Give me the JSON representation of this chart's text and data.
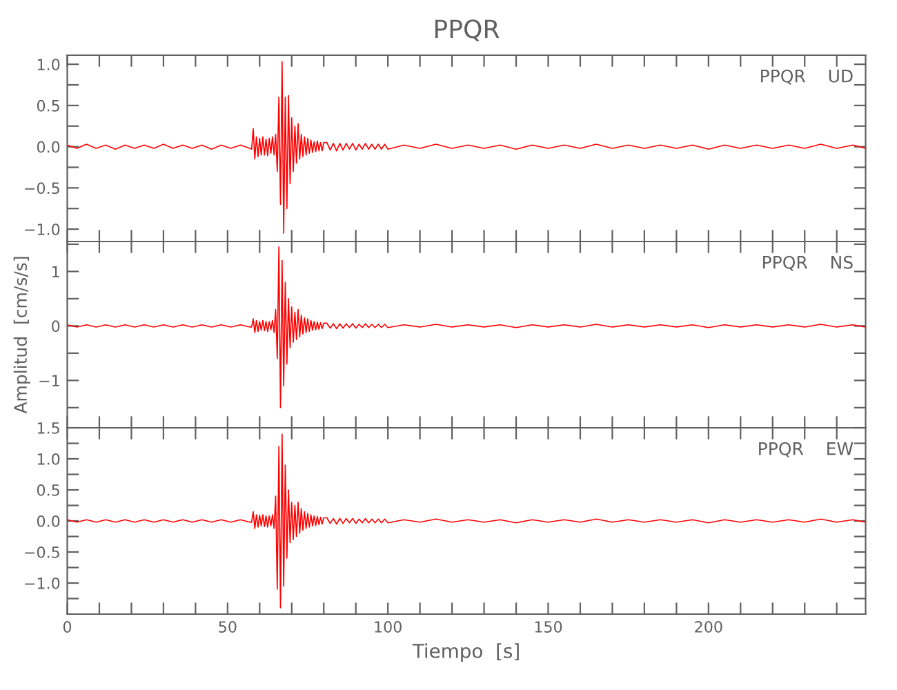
{
  "chart_data": [
    {
      "type": "line",
      "title": "PPQR",
      "annotations": [
        "PPQR    UD"
      ],
      "tick_labels": "y",
      "xlim": [
        0,
        249
      ],
      "xticks": [
        {
          "value": 0,
          "label": null
        },
        {
          "value": 10,
          "label": null
        },
        {
          "value": 20,
          "label": null
        },
        {
          "value": 30,
          "label": null
        },
        {
          "value": 40,
          "label": null
        },
        {
          "value": 50,
          "label": null
        },
        {
          "value": 60,
          "label": null
        },
        {
          "value": 70,
          "label": null
        },
        {
          "value": 80,
          "label": null
        },
        {
          "value": 90,
          "label": null
        },
        {
          "value": 100,
          "label": null
        },
        {
          "value": 110,
          "label": null
        },
        {
          "value": 120,
          "label": null
        },
        {
          "value": 130,
          "label": null
        },
        {
          "value": 140,
          "label": null
        },
        {
          "value": 150,
          "label": null
        },
        {
          "value": 160,
          "label": null
        },
        {
          "value": 170,
          "label": null
        },
        {
          "value": 180,
          "label": null
        },
        {
          "value": 190,
          "label": null
        },
        {
          "value": 200,
          "label": null
        },
        {
          "value": 210,
          "label": null
        },
        {
          "value": 220,
          "label": null
        },
        {
          "value": 230,
          "label": null
        },
        {
          "value": 240,
          "label": null
        }
      ],
      "ylim": [
        -1.15,
        1.11
      ],
      "yticks": [
        {
          "value": -1.0,
          "label": "−1.0"
        },
        {
          "value": -0.75,
          "label": null
        },
        {
          "value": -0.5,
          "label": "−0.5"
        },
        {
          "value": -0.25,
          "label": null
        },
        {
          "value": 0.0,
          "label": "0.0"
        },
        {
          "value": 0.25,
          "label": null
        },
        {
          "value": 0.5,
          "label": "0.5"
        },
        {
          "value": 0.75,
          "label": null
        },
        {
          "value": 1.0,
          "label": "1.0"
        }
      ],
      "x": [
        0,
        3,
        6,
        9,
        12,
        15,
        18,
        21,
        24,
        27,
        30,
        33,
        36,
        39,
        42,
        45,
        48,
        51,
        54,
        57,
        57.5,
        58,
        58.5,
        59,
        59.5,
        60,
        60.5,
        61,
        61.5,
        62,
        62.5,
        63,
        63.5,
        64,
        64.5,
        65,
        65.5,
        66,
        66.5,
        67,
        67.5,
        68,
        68.5,
        69,
        69.5,
        70,
        70.5,
        71,
        71.5,
        72,
        72.5,
        73,
        73.5,
        74,
        74.5,
        75,
        75.5,
        76,
        76.5,
        77,
        77.5,
        78,
        78.5,
        79,
        79.5,
        80,
        81,
        82,
        83,
        84,
        85,
        86,
        87,
        88,
        89,
        90,
        91,
        92,
        93,
        94,
        95,
        96,
        97,
        98,
        99,
        100,
        105,
        110,
        115,
        120,
        125,
        130,
        135,
        140,
        145,
        150,
        155,
        160,
        165,
        170,
        175,
        180,
        185,
        190,
        195,
        200,
        205,
        210,
        215,
        220,
        225,
        230,
        235,
        240,
        245,
        249
      ],
      "series": [
        {
          "color": "#ff0000",
          "values": [
            0.02,
            -0.02,
            0.03,
            -0.02,
            0.02,
            -0.03,
            0.02,
            -0.02,
            0.02,
            -0.02,
            0.03,
            -0.02,
            0.02,
            -0.02,
            0.02,
            -0.03,
            0.02,
            -0.02,
            0.02,
            -0.02,
            -0.03,
            0.22,
            -0.15,
            0.12,
            -0.12,
            0.1,
            -0.1,
            0.12,
            -0.1,
            0.09,
            -0.11,
            0.1,
            -0.08,
            0.12,
            -0.1,
            0.15,
            -0.3,
            0.6,
            -0.7,
            1.03,
            -1.05,
            0.6,
            -0.75,
            0.62,
            -0.45,
            0.35,
            -0.3,
            0.25,
            -0.2,
            0.28,
            -0.15,
            0.15,
            -0.12,
            0.12,
            -0.1,
            0.1,
            -0.08,
            0.08,
            -0.07,
            0.06,
            -0.06,
            0.07,
            -0.05,
            0.05,
            -0.05,
            0.05,
            0.05,
            -0.04,
            0.04,
            -0.05,
            0.04,
            -0.04,
            0.04,
            -0.03,
            0.04,
            -0.04,
            0.03,
            -0.03,
            0.04,
            -0.03,
            0.03,
            -0.03,
            0.03,
            -0.03,
            0.03,
            -0.03,
            0.02,
            -0.02,
            0.03,
            -0.02,
            0.02,
            -0.02,
            0.02,
            -0.03,
            0.02,
            -0.02,
            0.02,
            -0.02,
            0.03,
            -0.02,
            0.02,
            -0.02,
            0.02,
            -0.02,
            0.02,
            -0.03,
            0.02,
            -0.02,
            0.02,
            -0.02,
            0.02,
            -0.02,
            0.03,
            -0.02,
            0.02,
            -0.02
          ]
        }
      ]
    },
    {
      "type": "line",
      "ylabel": "Amplitud  [cm/s/s]",
      "annotations": [
        "PPQR    NS"
      ],
      "tick_labels": "y",
      "xlim": [
        0,
        249
      ],
      "xticks": [
        {
          "value": 0,
          "label": null
        },
        {
          "value": 10,
          "label": null
        },
        {
          "value": 20,
          "label": null
        },
        {
          "value": 30,
          "label": null
        },
        {
          "value": 40,
          "label": null
        },
        {
          "value": 50,
          "label": null
        },
        {
          "value": 60,
          "label": null
        },
        {
          "value": 70,
          "label": null
        },
        {
          "value": 80,
          "label": null
        },
        {
          "value": 90,
          "label": null
        },
        {
          "value": 100,
          "label": null
        },
        {
          "value": 110,
          "label": null
        },
        {
          "value": 120,
          "label": null
        },
        {
          "value": 130,
          "label": null
        },
        {
          "value": 140,
          "label": null
        },
        {
          "value": 150,
          "label": null
        },
        {
          "value": 160,
          "label": null
        },
        {
          "value": 170,
          "label": null
        },
        {
          "value": 180,
          "label": null
        },
        {
          "value": 190,
          "label": null
        },
        {
          "value": 200,
          "label": null
        },
        {
          "value": 210,
          "label": null
        },
        {
          "value": 220,
          "label": null
        },
        {
          "value": 230,
          "label": null
        },
        {
          "value": 240,
          "label": null
        }
      ],
      "ylim": [
        -1.87,
        1.55
      ],
      "yticks": [
        {
          "value": -1.5,
          "label": null
        },
        {
          "value": -1,
          "label": "−1"
        },
        {
          "value": -0.5,
          "label": null
        },
        {
          "value": 0,
          "label": "0"
        },
        {
          "value": 0.5,
          "label": null
        },
        {
          "value": 1,
          "label": "1"
        },
        {
          "value": 1.5,
          "label": null
        }
      ],
      "x": [
        0,
        3,
        6,
        9,
        12,
        15,
        18,
        21,
        24,
        27,
        30,
        33,
        36,
        39,
        42,
        45,
        48,
        51,
        54,
        57,
        57.5,
        58,
        58.5,
        59,
        59.5,
        60,
        60.5,
        61,
        61.5,
        62,
        62.5,
        63,
        63.5,
        64,
        64.5,
        65,
        65.5,
        66,
        66.5,
        67,
        67.5,
        68,
        68.5,
        69,
        69.5,
        70,
        70.5,
        71,
        71.5,
        72,
        72.5,
        73,
        73.5,
        74,
        74.5,
        75,
        75.5,
        76,
        76.5,
        77,
        77.5,
        78,
        78.5,
        79,
        79.5,
        80,
        81,
        82,
        83,
        84,
        85,
        86,
        87,
        88,
        89,
        90,
        91,
        92,
        93,
        94,
        95,
        96,
        97,
        98,
        99,
        100,
        105,
        110,
        115,
        120,
        125,
        130,
        135,
        140,
        145,
        150,
        155,
        160,
        165,
        170,
        175,
        180,
        185,
        190,
        195,
        200,
        205,
        210,
        215,
        220,
        225,
        230,
        235,
        240,
        245,
        249
      ],
      "series": [
        {
          "color": "#ff0000",
          "values": [
            0.02,
            -0.02,
            0.02,
            -0.02,
            0.02,
            -0.02,
            0.02,
            -0.02,
            0.02,
            -0.02,
            0.02,
            -0.02,
            0.02,
            -0.02,
            0.02,
            -0.02,
            0.02,
            -0.02,
            0.02,
            -0.02,
            -0.02,
            0.13,
            -0.12,
            0.1,
            -0.1,
            0.08,
            -0.08,
            0.1,
            -0.09,
            0.08,
            -0.1,
            0.08,
            -0.07,
            0.1,
            -0.12,
            0.3,
            -0.6,
            1.45,
            -1.5,
            1.2,
            -1.1,
            0.8,
            -0.7,
            0.5,
            -0.4,
            0.35,
            -0.3,
            0.25,
            -0.25,
            0.3,
            -0.2,
            0.2,
            -0.15,
            0.15,
            -0.12,
            0.13,
            -0.1,
            0.1,
            -0.08,
            0.08,
            -0.07,
            0.07,
            -0.06,
            0.06,
            -0.05,
            0.05,
            0.05,
            -0.04,
            0.04,
            -0.05,
            0.04,
            -0.04,
            0.04,
            -0.03,
            0.04,
            -0.04,
            0.03,
            -0.03,
            0.04,
            -0.03,
            0.03,
            -0.03,
            0.03,
            -0.03,
            0.03,
            -0.03,
            0.02,
            -0.02,
            0.03,
            -0.02,
            0.02,
            -0.02,
            0.02,
            -0.03,
            0.02,
            -0.02,
            0.02,
            -0.02,
            0.03,
            -0.02,
            0.02,
            -0.02,
            0.02,
            -0.02,
            0.02,
            -0.03,
            0.02,
            -0.02,
            0.02,
            -0.02,
            0.02,
            -0.02,
            0.03,
            -0.02,
            0.02,
            -0.02
          ]
        }
      ]
    },
    {
      "type": "line",
      "xlabel": "Tiempo  [s]",
      "annotations": [
        "PPQR    EW"
      ],
      "xlim": [
        0,
        249
      ],
      "xticks": [
        {
          "value": 0,
          "label": "0"
        },
        {
          "value": 10,
          "label": null
        },
        {
          "value": 20,
          "label": null
        },
        {
          "value": 30,
          "label": null
        },
        {
          "value": 40,
          "label": null
        },
        {
          "value": 50,
          "label": "50"
        },
        {
          "value": 60,
          "label": null
        },
        {
          "value": 70,
          "label": null
        },
        {
          "value": 80,
          "label": null
        },
        {
          "value": 90,
          "label": null
        },
        {
          "value": 100,
          "label": "100"
        },
        {
          "value": 110,
          "label": null
        },
        {
          "value": 120,
          "label": null
        },
        {
          "value": 130,
          "label": null
        },
        {
          "value": 140,
          "label": null
        },
        {
          "value": 150,
          "label": "150"
        },
        {
          "value": 160,
          "label": null
        },
        {
          "value": 170,
          "label": null
        },
        {
          "value": 180,
          "label": null
        },
        {
          "value": 190,
          "label": null
        },
        {
          "value": 200,
          "label": "200"
        },
        {
          "value": 210,
          "label": null
        },
        {
          "value": 220,
          "label": null
        },
        {
          "value": 230,
          "label": null
        },
        {
          "value": 240,
          "label": null
        }
      ],
      "ylim": [
        -1.5,
        1.5
      ],
      "yticks": [
        {
          "value": -1.25,
          "label": null
        },
        {
          "value": -1.0,
          "label": "−1.0"
        },
        {
          "value": -0.75,
          "label": null
        },
        {
          "value": -0.5,
          "label": "−0.5"
        },
        {
          "value": -0.25,
          "label": null
        },
        {
          "value": 0.0,
          "label": "0.0"
        },
        {
          "value": 0.25,
          "label": null
        },
        {
          "value": 0.5,
          "label": "0.5"
        },
        {
          "value": 0.75,
          "label": null
        },
        {
          "value": 1.0,
          "label": "1.0"
        },
        {
          "value": 1.25,
          "label": null
        },
        {
          "value": 1.5,
          "label": "1.5"
        }
      ],
      "x": [
        0,
        3,
        6,
        9,
        12,
        15,
        18,
        21,
        24,
        27,
        30,
        33,
        36,
        39,
        42,
        45,
        48,
        51,
        54,
        57,
        57.5,
        58,
        58.5,
        59,
        59.5,
        60,
        60.5,
        61,
        61.5,
        62,
        62.5,
        63,
        63.5,
        64,
        64.5,
        65,
        65.5,
        66,
        66.5,
        67,
        67.5,
        68,
        68.5,
        69,
        69.5,
        70,
        70.5,
        71,
        71.5,
        72,
        72.5,
        73,
        73.5,
        74,
        74.5,
        75,
        75.5,
        76,
        76.5,
        77,
        77.5,
        78,
        78.5,
        79,
        79.5,
        80,
        81,
        82,
        83,
        84,
        85,
        86,
        87,
        88,
        89,
        90,
        91,
        92,
        93,
        94,
        95,
        96,
        97,
        98,
        99,
        100,
        105,
        110,
        115,
        120,
        125,
        130,
        135,
        140,
        145,
        150,
        155,
        160,
        165,
        170,
        175,
        180,
        185,
        190,
        195,
        200,
        205,
        210,
        215,
        220,
        225,
        230,
        235,
        240,
        245,
        249
      ],
      "series": [
        {
          "color": "#ff0000",
          "values": [
            0.02,
            -0.02,
            0.02,
            -0.02,
            0.02,
            -0.02,
            0.02,
            -0.02,
            0.02,
            -0.02,
            0.02,
            -0.02,
            0.02,
            -0.02,
            0.02,
            -0.02,
            0.02,
            -0.02,
            0.02,
            -0.02,
            -0.02,
            0.15,
            -0.12,
            0.1,
            -0.1,
            0.09,
            -0.08,
            0.1,
            -0.09,
            0.08,
            -0.1,
            0.08,
            -0.08,
            0.1,
            -0.12,
            0.4,
            -1.1,
            1.2,
            -1.4,
            1.4,
            -1.05,
            0.9,
            -0.6,
            0.5,
            -0.35,
            0.3,
            -0.3,
            0.25,
            -0.25,
            0.3,
            -0.2,
            0.2,
            -0.15,
            0.15,
            -0.12,
            0.12,
            -0.1,
            0.1,
            -0.08,
            0.08,
            -0.07,
            0.07,
            -0.06,
            0.06,
            -0.05,
            0.05,
            0.05,
            -0.04,
            0.04,
            -0.05,
            0.04,
            -0.04,
            0.04,
            -0.03,
            0.04,
            -0.04,
            0.03,
            -0.03,
            0.04,
            -0.03,
            0.03,
            -0.03,
            0.03,
            -0.03,
            0.03,
            -0.03,
            0.02,
            -0.02,
            0.03,
            -0.02,
            0.02,
            -0.02,
            0.02,
            -0.03,
            0.02,
            -0.02,
            0.02,
            -0.02,
            0.03,
            -0.02,
            0.02,
            -0.02,
            0.02,
            -0.02,
            0.02,
            -0.03,
            0.02,
            -0.02,
            0.02,
            -0.02,
            0.02,
            -0.02,
            0.03,
            -0.02,
            0.02,
            -0.02
          ]
        }
      ]
    }
  ]
}
